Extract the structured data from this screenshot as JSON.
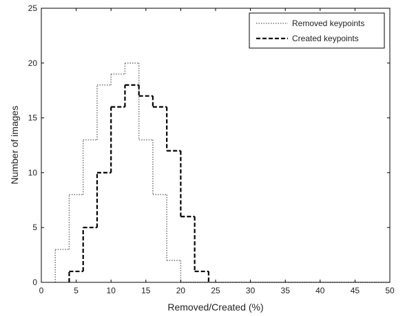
{
  "chart_data": {
    "type": "line",
    "step": true,
    "xlabel": "Removed/Created (%)",
    "ylabel": "Number of images",
    "xlim": [
      0,
      50
    ],
    "ylim": [
      0,
      25
    ],
    "xticks": [
      0,
      5,
      10,
      15,
      20,
      25,
      30,
      35,
      40,
      45,
      50
    ],
    "yticks": [
      0,
      5,
      10,
      15,
      20,
      25
    ],
    "grid": false,
    "legend_position": "top-right",
    "bin_width": 2,
    "series": [
      {
        "name": "Removed keypoints",
        "style": "dotted",
        "color": "#777777",
        "bins": [
          {
            "x": 2,
            "y": 3
          },
          {
            "x": 4,
            "y": 8
          },
          {
            "x": 6,
            "y": 13
          },
          {
            "x": 8,
            "y": 18
          },
          {
            "x": 10,
            "y": 19
          },
          {
            "x": 12,
            "y": 20
          },
          {
            "x": 14,
            "y": 13
          },
          {
            "x": 16,
            "y": 8
          },
          {
            "x": 18,
            "y": 2
          },
          {
            "x": 20,
            "y": 0
          },
          {
            "x": 22,
            "y": 0
          },
          {
            "x": 24,
            "y": 0
          },
          {
            "x": 26,
            "y": 0
          },
          {
            "x": 28,
            "y": 0
          },
          {
            "x": 30,
            "y": 0
          },
          {
            "x": 32,
            "y": 0
          },
          {
            "x": 34,
            "y": 0
          },
          {
            "x": 36,
            "y": 0
          },
          {
            "x": 38,
            "y": 0
          },
          {
            "x": 40,
            "y": 0
          },
          {
            "x": 42,
            "y": 0
          },
          {
            "x": 44,
            "y": 0
          },
          {
            "x": 46,
            "y": 0
          },
          {
            "x": 48,
            "y": 0
          }
        ]
      },
      {
        "name": "Created keypoints",
        "style": "dashed",
        "color": "#000000",
        "bins": [
          {
            "x": 4,
            "y": 1
          },
          {
            "x": 6,
            "y": 5
          },
          {
            "x": 8,
            "y": 10
          },
          {
            "x": 10,
            "y": 16
          },
          {
            "x": 12,
            "y": 18
          },
          {
            "x": 14,
            "y": 17
          },
          {
            "x": 16,
            "y": 16
          },
          {
            "x": 18,
            "y": 12
          },
          {
            "x": 20,
            "y": 6
          },
          {
            "x": 22,
            "y": 1
          }
        ]
      }
    ]
  }
}
